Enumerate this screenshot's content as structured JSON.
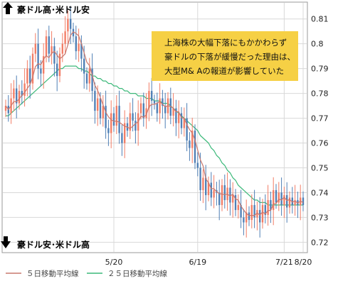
{
  "chart_data": {
    "type": "candlestick",
    "top_label": "豪ドル高･米ドル安",
    "bottom_label": "豪ドル安･米ドル高",
    "x_ticks": [
      "5/20",
      "6/19",
      "7/21",
      "8/20"
    ],
    "y_ticks": [
      "0.81",
      "0.8",
      "0.79",
      "0.78",
      "0.77",
      "0.76",
      "0.75",
      "0.74",
      "0.73",
      "0.72"
    ],
    "ylim": [
      0.715,
      0.825
    ],
    "annotation": [
      "上海株の大幅下落にもかかわらず",
      "豪ドルの下落が緩慢だった理由は、",
      "大型M& Aの報道が影響していた"
    ],
    "legend": [
      {
        "label": "５日移動平均線",
        "color": "#c8786e"
      },
      {
        "label": "２５日移動平均線",
        "color": "#3cb97a"
      }
    ],
    "colors": {
      "up": "#f27d66",
      "down": "#4f7fb5",
      "ma5": "#c8786e",
      "ma25": "#3cb97a",
      "annotation_bg": "#f6d045",
      "grid": "#d8d8d8",
      "border": "#9a9a9a",
      "arrow": "#000000"
    },
    "closes": [
      0.775,
      0.772,
      0.778,
      0.782,
      0.776,
      0.781,
      0.779,
      0.784,
      0.79,
      0.784,
      0.796,
      0.8,
      0.79,
      0.788,
      0.795,
      0.803,
      0.796,
      0.799,
      0.792,
      0.787,
      0.796,
      0.8,
      0.805,
      0.81,
      0.806,
      0.803,
      0.797,
      0.8,
      0.794,
      0.788,
      0.784,
      0.79,
      0.781,
      0.773,
      0.778,
      0.77,
      0.775,
      0.766,
      0.764,
      0.772,
      0.767,
      0.775,
      0.764,
      0.76,
      0.768,
      0.765,
      0.772,
      0.769,
      0.765,
      0.772,
      0.776,
      0.77,
      0.774,
      0.781,
      0.777,
      0.776,
      0.772,
      0.778,
      0.775,
      0.772,
      0.778,
      0.771,
      0.774,
      0.768,
      0.772,
      0.766,
      0.77,
      0.761,
      0.758,
      0.765,
      0.752,
      0.75,
      0.741,
      0.746,
      0.739,
      0.744,
      0.738,
      0.741,
      0.74,
      0.735,
      0.743,
      0.737,
      0.742,
      0.736,
      0.739,
      0.733,
      0.735,
      0.73,
      0.728,
      0.732,
      0.729,
      0.735,
      0.73,
      0.733,
      0.728,
      0.735,
      0.731,
      0.737,
      0.733,
      0.741,
      0.736,
      0.74,
      0.735,
      0.739,
      0.734,
      0.738,
      0.735,
      0.737,
      0.735,
      0.738,
      0.735
    ],
    "ma25": [
      0.771,
      0.771,
      0.772,
      0.773,
      0.774,
      0.775,
      0.776,
      0.777,
      0.778,
      0.779,
      0.78,
      0.781,
      0.782,
      0.783,
      0.784,
      0.785,
      0.786,
      0.787,
      0.788,
      0.789,
      0.79,
      0.79,
      0.791,
      0.791,
      0.791,
      0.791,
      0.791,
      0.79,
      0.79,
      0.789,
      0.789,
      0.788,
      0.787,
      0.787,
      0.786,
      0.786,
      0.785,
      0.785,
      0.784,
      0.784,
      0.783,
      0.783,
      0.782,
      0.782,
      0.781,
      0.781,
      0.78,
      0.78,
      0.78,
      0.779,
      0.779,
      0.779,
      0.778,
      0.778,
      0.778,
      0.777,
      0.777,
      0.777,
      0.776,
      0.776,
      0.776,
      0.775,
      0.774,
      0.773,
      0.772,
      0.771,
      0.77,
      0.769,
      0.768,
      0.767,
      0.766,
      0.765,
      0.763,
      0.762,
      0.761,
      0.76,
      0.758,
      0.757,
      0.755,
      0.754,
      0.752,
      0.751,
      0.749,
      0.748,
      0.746,
      0.745,
      0.743,
      0.742,
      0.741,
      0.74,
      0.739,
      0.738,
      0.737,
      0.737,
      0.736,
      0.736,
      0.736,
      0.735,
      0.735,
      0.735,
      0.735,
      0.735,
      0.735,
      0.735,
      0.735,
      0.735,
      0.735,
      0.735,
      0.735,
      0.735,
      0.735
    ]
  }
}
